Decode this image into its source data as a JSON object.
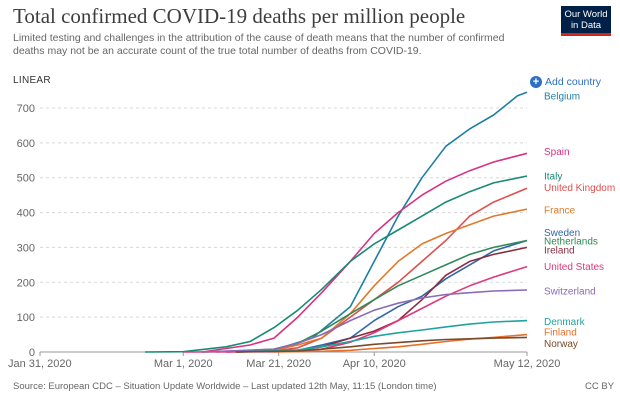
{
  "title": "Total confirmed COVID-19 deaths per million people",
  "subtitle": "Limited testing and challenges in the attribution of the cause of death means that the number of confirmed deaths may not be an accurate count of the true total number of deaths from COVID-19.",
  "logo": {
    "line1": "Our World",
    "line2": "in Data"
  },
  "scale_label": "LINEAR",
  "add_country": "Add country",
  "footer": "Source: European CDC – Situation Update Worldwide – Last updated 12th May, 11:15 (London time)",
  "license": "CC BY",
  "chart_data": {
    "type": "line",
    "title": "Total confirmed COVID-19 deaths per million people",
    "ylim": [
      0,
      700
    ],
    "yticks": [
      0,
      100,
      200,
      300,
      400,
      500,
      600,
      700
    ],
    "xticks": [
      "Jan 31, 2020",
      "Mar 1, 2020",
      "Mar 21, 2020",
      "Apr 10, 2020",
      "May 12, 2020"
    ],
    "xrange": [
      "2020-01-31",
      "2020-05-12"
    ],
    "legend": "right-end labels",
    "grid": "horizontal dashed",
    "series": [
      {
        "name": "Belgium",
        "color": "#1d7fa5",
        "x": [
          "2020-03-10",
          "2020-03-20",
          "2020-03-28",
          "2020-04-05",
          "2020-04-10",
          "2020-04-15",
          "2020-04-20",
          "2020-04-25",
          "2020-04-30",
          "2020-05-05",
          "2020-05-10",
          "2020-05-12"
        ],
        "y": [
          0,
          6,
          40,
          130,
          260,
          390,
          500,
          590,
          640,
          680,
          735,
          745
        ]
      },
      {
        "name": "Spain",
        "color": "#d63384",
        "x": [
          "2020-03-05",
          "2020-03-15",
          "2020-03-20",
          "2020-03-25",
          "2020-03-30",
          "2020-04-05",
          "2020-04-10",
          "2020-04-15",
          "2020-04-20",
          "2020-04-25",
          "2020-04-30",
          "2020-05-05",
          "2020-05-12"
        ],
        "y": [
          0,
          20,
          40,
          100,
          170,
          260,
          340,
          400,
          450,
          490,
          520,
          545,
          570
        ]
      },
      {
        "name": "Italy",
        "color": "#178a75",
        "x": [
          "2020-02-22",
          "2020-03-01",
          "2020-03-10",
          "2020-03-15",
          "2020-03-20",
          "2020-03-25",
          "2020-03-30",
          "2020-04-05",
          "2020-04-10",
          "2020-04-15",
          "2020-04-20",
          "2020-04-25",
          "2020-04-30",
          "2020-05-05",
          "2020-05-12"
        ],
        "y": [
          0,
          1,
          15,
          30,
          70,
          120,
          180,
          260,
          310,
          350,
          390,
          430,
          460,
          485,
          505
        ]
      },
      {
        "name": "United Kingdom",
        "color": "#e04e4e",
        "x": [
          "2020-03-10",
          "2020-03-20",
          "2020-03-25",
          "2020-03-30",
          "2020-04-05",
          "2020-04-10",
          "2020-04-15",
          "2020-04-20",
          "2020-04-25",
          "2020-04-30",
          "2020-05-05",
          "2020-05-12"
        ],
        "y": [
          0,
          3,
          12,
          40,
          100,
          150,
          200,
          260,
          320,
          390,
          430,
          470
        ]
      },
      {
        "name": "France",
        "color": "#e07a2b",
        "x": [
          "2020-03-05",
          "2020-03-20",
          "2020-03-25",
          "2020-03-30",
          "2020-04-05",
          "2020-04-10",
          "2020-04-15",
          "2020-04-20",
          "2020-04-25",
          "2020-04-30",
          "2020-05-05",
          "2020-05-12"
        ],
        "y": [
          0,
          5,
          20,
          40,
          110,
          190,
          260,
          310,
          340,
          365,
          390,
          410
        ]
      },
      {
        "name": "Sweden",
        "color": "#3366a8",
        "x": [
          "2020-03-12",
          "2020-03-25",
          "2020-03-30",
          "2020-04-05",
          "2020-04-10",
          "2020-04-15",
          "2020-04-20",
          "2020-04-25",
          "2020-04-30",
          "2020-05-05",
          "2020-05-12"
        ],
        "y": [
          0,
          5,
          20,
          40,
          90,
          130,
          160,
          210,
          250,
          290,
          320
        ]
      },
      {
        "name": "Netherlands",
        "color": "#2e8b57",
        "x": [
          "2020-03-08",
          "2020-03-20",
          "2020-03-25",
          "2020-03-30",
          "2020-04-05",
          "2020-04-10",
          "2020-04-15",
          "2020-04-20",
          "2020-04-25",
          "2020-04-30",
          "2020-05-05",
          "2020-05-12"
        ],
        "y": [
          0,
          8,
          25,
          60,
          110,
          150,
          190,
          220,
          250,
          280,
          300,
          320
        ]
      },
      {
        "name": "Ireland",
        "color": "#8b2c3e",
        "x": [
          "2020-03-12",
          "2020-03-25",
          "2020-03-30",
          "2020-04-05",
          "2020-04-10",
          "2020-04-15",
          "2020-04-20",
          "2020-04-25",
          "2020-04-30",
          "2020-05-05",
          "2020-05-12"
        ],
        "y": [
          0,
          4,
          15,
          40,
          60,
          90,
          150,
          220,
          260,
          280,
          300
        ]
      },
      {
        "name": "United States",
        "color": "#e0387a",
        "x": [
          "2020-03-01",
          "2020-03-20",
          "2020-03-25",
          "2020-03-30",
          "2020-04-05",
          "2020-04-10",
          "2020-04-15",
          "2020-04-20",
          "2020-04-25",
          "2020-04-30",
          "2020-05-05",
          "2020-05-12"
        ],
        "y": [
          0,
          0.5,
          2,
          8,
          28,
          55,
          90,
          125,
          160,
          190,
          215,
          245
        ]
      },
      {
        "name": "Switzerland",
        "color": "#8a6bb5",
        "x": [
          "2020-03-05",
          "2020-03-20",
          "2020-03-25",
          "2020-03-30",
          "2020-04-05",
          "2020-04-10",
          "2020-04-15",
          "2020-04-20",
          "2020-04-25",
          "2020-04-30",
          "2020-05-05",
          "2020-05-12"
        ],
        "y": [
          0,
          8,
          25,
          50,
          90,
          120,
          140,
          155,
          165,
          170,
          175,
          178
        ]
      },
      {
        "name": "Denmark",
        "color": "#20a39e",
        "x": [
          "2020-03-12",
          "2020-03-25",
          "2020-03-30",
          "2020-04-05",
          "2020-04-10",
          "2020-04-15",
          "2020-04-20",
          "2020-04-25",
          "2020-04-30",
          "2020-05-05",
          "2020-05-12"
        ],
        "y": [
          0,
          6,
          15,
          30,
          45,
          55,
          63,
          72,
          80,
          86,
          90
        ]
      },
      {
        "name": "Finland",
        "color": "#e8702a",
        "x": [
          "2020-03-20",
          "2020-03-30",
          "2020-04-05",
          "2020-04-10",
          "2020-04-15",
          "2020-04-20",
          "2020-04-25",
          "2020-04-30",
          "2020-05-05",
          "2020-05-12"
        ],
        "y": [
          0,
          2,
          5,
          10,
          15,
          22,
          30,
          37,
          42,
          50
        ]
      },
      {
        "name": "Norway",
        "color": "#7a4a2a",
        "x": [
          "2020-03-12",
          "2020-03-25",
          "2020-03-30",
          "2020-04-05",
          "2020-04-10",
          "2020-04-15",
          "2020-04-20",
          "2020-04-25",
          "2020-04-30",
          "2020-05-05",
          "2020-05-12"
        ],
        "y": [
          0,
          3,
          8,
          15,
          22,
          27,
          32,
          36,
          38,
          40,
          42
        ]
      }
    ],
    "end_labels": [
      {
        "name": "Belgium",
        "y": 735
      },
      {
        "name": "Spain",
        "y": 575
      },
      {
        "name": "Italy",
        "y": 505
      },
      {
        "name": "United Kingdom",
        "y": 472
      },
      {
        "name": "France",
        "y": 408
      },
      {
        "name": "Sweden",
        "y": 343
      },
      {
        "name": "Netherlands",
        "y": 318
      },
      {
        "name": "Ireland",
        "y": 293
      },
      {
        "name": "United States",
        "y": 245
      },
      {
        "name": "Switzerland",
        "y": 175
      },
      {
        "name": "Denmark",
        "y": 88
      },
      {
        "name": "Finland",
        "y": 58
      },
      {
        "name": "Norway",
        "y": 25
      }
    ]
  }
}
